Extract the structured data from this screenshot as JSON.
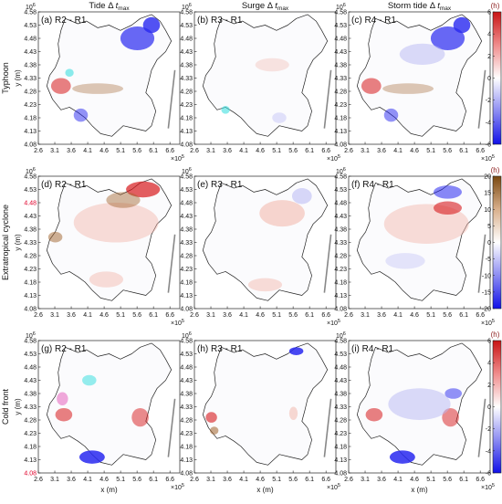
{
  "figure": {
    "col_titles": [
      {
        "pre": "Tide Δ ",
        "var": "t",
        "sub": "max"
      },
      {
        "pre": "Surge Δ ",
        "var": "t",
        "sub": "max"
      },
      {
        "pre": "Storm tide Δ ",
        "var": "t",
        "sub": "max"
      }
    ],
    "row_titles": [
      "Typhoon",
      "Extratropical cyclone",
      "Cold front"
    ],
    "colorbar_unit": "(h)"
  },
  "chart_data": {
    "type": "heatmap",
    "xlabel": "x (m)",
    "ylabel": "y (m)",
    "x_ticks": [
      "2.6",
      "3.1",
      "3.6",
      "4.1",
      "4.6",
      "5.1",
      "5.6",
      "6.1",
      "6.6"
    ],
    "x_tick_values": [
      2.6,
      3.1,
      3.6,
      4.1,
      4.6,
      5.1,
      5.6,
      6.1,
      6.6
    ],
    "x_scale": "×10",
    "x_exp": "5",
    "y_ticks": [
      "4.58",
      "4.53",
      "4.48",
      "4.43",
      "4.38",
      "4.33",
      "4.28",
      "4.23",
      "4.18",
      "4.13",
      "4.08"
    ],
    "y_tick_values": [
      4.58,
      4.53,
      4.48,
      4.43,
      4.38,
      4.33,
      4.28,
      4.23,
      4.18,
      4.13,
      4.08
    ],
    "y_scale": "10",
    "y_exp": "6",
    "xlim": [
      2.6,
      6.9
    ],
    "ylim": [
      4.08,
      4.58
    ],
    "panels": [
      {
        "label": "(a) R2 - R1",
        "row": 0,
        "col": 0
      },
      {
        "label": "(b) R3 - R1",
        "row": 0,
        "col": 1
      },
      {
        "label": "(c) R4 - R1",
        "row": 0,
        "col": 2
      },
      {
        "label": "(d) R2 - R1",
        "row": 1,
        "col": 0
      },
      {
        "label": "(e) R3 - R1",
        "row": 1,
        "col": 1
      },
      {
        "label": "(f) R4 - R1",
        "row": 1,
        "col": 2
      },
      {
        "label": "(g) R2 - R1",
        "row": 2,
        "col": 0
      },
      {
        "label": "(h) R3 - R1",
        "row": 2,
        "col": 1
      },
      {
        "label": "(i) R4 - R1",
        "row": 2,
        "col": 2
      }
    ],
    "colorbars": [
      {
        "row": 0,
        "range": [
          -6,
          6
        ],
        "ticks": [
          6,
          4,
          2,
          0,
          -2,
          -4,
          -6
        ],
        "colormap": "blue-white-red"
      },
      {
        "row": 1,
        "range": [
          -20,
          20
        ],
        "ticks": [
          20,
          15,
          10,
          5,
          0,
          -5,
          -10,
          -15,
          -20
        ],
        "colormap": "blue-white-brown"
      },
      {
        "row": 2,
        "range": [
          -6,
          6
        ],
        "ticks": [
          6,
          4,
          2,
          0,
          -2,
          -4,
          -6
        ],
        "colormap": "blue-white-red"
      }
    ],
    "highlighted_y_ticks": [
      {
        "row": 1,
        "col": 0,
        "tick": "4.48",
        "color": "#e0002a"
      },
      {
        "row": 2,
        "col": 0,
        "tick": "4.08",
        "color": "#e0002a"
      }
    ],
    "colors": {
      "positive": "#d7191c",
      "negative": "#2222ee",
      "brown": "#8c510a"
    }
  }
}
